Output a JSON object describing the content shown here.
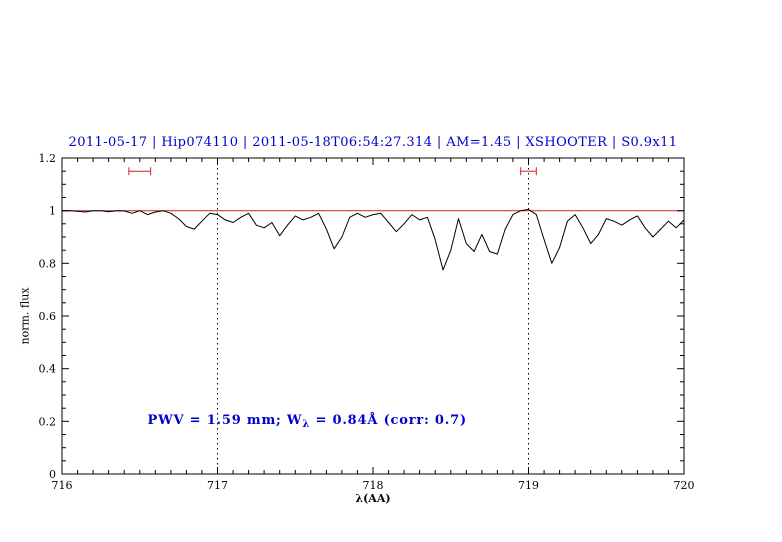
{
  "chart_data": {
    "type": "line",
    "title": "2011-05-17 | Hip074110 | 2011-05-18T06:54:27.314 | AM=1.45 | XSHOOTER | S0.9x11",
    "xlabel": "λ(AA)",
    "ylabel": "norm. flux",
    "xlim": [
      716,
      720
    ],
    "ylim": [
      0,
      1.2
    ],
    "grid": false,
    "colors": {
      "title": "#0000cc",
      "annotation": "#0000cc",
      "reference": "#cc2222",
      "spectrum": "#000000"
    },
    "x_ticks": {
      "major": [
        716,
        717,
        718,
        719,
        720
      ],
      "labels": [
        "716",
        "717",
        "718",
        "719",
        "720"
      ],
      "minor_step": 0.1
    },
    "y_ticks": {
      "major": [
        0,
        0.2,
        0.4,
        0.6,
        0.8,
        1,
        1.2
      ],
      "labels": [
        "0",
        "0.2",
        "0.4",
        "0.6",
        "0.8",
        "1",
        "1.2"
      ],
      "minor_step": 0.05
    },
    "reference_lines": {
      "continuum": {
        "y": 1.0,
        "color": "#cc2222"
      },
      "vertical_dotted": [
        717,
        719
      ]
    },
    "range_markers": [
      {
        "x_center": 716.5,
        "half_width": 0.07,
        "y": 1.15,
        "color": "#cc2222"
      },
      {
        "x_center": 719.0,
        "half_width": 0.05,
        "y": 1.15,
        "color": "#cc2222"
      }
    ],
    "annotation": {
      "pre": "PWV = 1.59 mm; W",
      "sub": "λ",
      "post": " = 0.84Å (corr: 0.7)",
      "x": 716.55,
      "y": 0.19,
      "color": "#0000cc"
    },
    "series": [
      {
        "name": "spectrum",
        "color": "#000000",
        "x": [
          716.0,
          716.05,
          716.1,
          716.15,
          716.2,
          716.25,
          716.3,
          716.35,
          716.4,
          716.45,
          716.5,
          716.55,
          716.6,
          716.65,
          716.7,
          716.75,
          716.8,
          716.85,
          716.9,
          716.95,
          717.0,
          717.05,
          717.1,
          717.15,
          717.2,
          717.25,
          717.3,
          717.35,
          717.4,
          717.45,
          717.5,
          717.55,
          717.6,
          717.65,
          717.7,
          717.75,
          717.8,
          717.85,
          717.9,
          717.95,
          718.0,
          718.05,
          718.1,
          718.15,
          718.2,
          718.25,
          718.3,
          718.35,
          718.4,
          718.45,
          718.5,
          718.55,
          718.6,
          718.65,
          718.7,
          718.75,
          718.8,
          718.85,
          718.9,
          718.95,
          719.0,
          719.05,
          719.1,
          719.15,
          719.2,
          719.25,
          719.3,
          719.35,
          719.4,
          719.45,
          719.5,
          719.55,
          719.6,
          719.65,
          719.7,
          719.75,
          719.8,
          719.85,
          719.9,
          719.95,
          720.0
        ],
        "y": [
          1.0,
          1.0,
          0.998,
          0.995,
          1.0,
          1.0,
          0.996,
          1.0,
          0.999,
          0.99,
          1.0,
          0.985,
          0.995,
          1.0,
          0.99,
          0.97,
          0.94,
          0.93,
          0.96,
          0.99,
          0.985,
          0.965,
          0.955,
          0.975,
          0.99,
          0.945,
          0.935,
          0.955,
          0.905,
          0.945,
          0.98,
          0.965,
          0.975,
          0.99,
          0.93,
          0.855,
          0.9,
          0.975,
          0.99,
          0.975,
          0.985,
          0.99,
          0.955,
          0.92,
          0.95,
          0.985,
          0.965,
          0.975,
          0.89,
          0.775,
          0.85,
          0.97,
          0.875,
          0.845,
          0.91,
          0.845,
          0.835,
          0.93,
          0.985,
          1.0,
          1.005,
          0.985,
          0.89,
          0.8,
          0.86,
          0.96,
          0.985,
          0.935,
          0.875,
          0.91,
          0.97,
          0.96,
          0.945,
          0.965,
          0.98,
          0.935,
          0.9,
          0.93,
          0.96,
          0.935,
          0.965
        ]
      }
    ]
  }
}
